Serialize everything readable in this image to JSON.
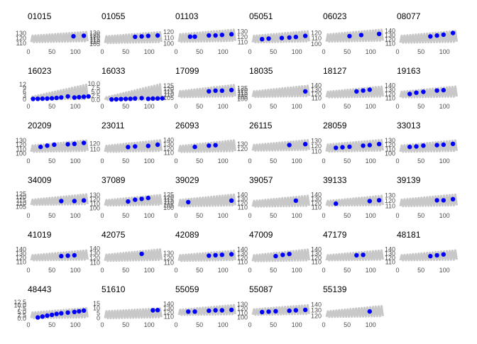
{
  "style": {
    "band_color": "#c8c8c8",
    "point_color": "#0000ff",
    "text_color": "#4d4d4d",
    "title_color": "#000000"
  },
  "chart_data": [
    {
      "type": "scatter",
      "title": "01015",
      "ylim": [
        104,
        140
      ],
      "xlim": [
        0,
        130
      ],
      "yticks": [
        110,
        120,
        130
      ],
      "xticks": [
        0,
        50,
        100
      ],
      "band": [
        112,
        125,
        133
      ],
      "x": [
        96,
        118
      ],
      "y": [
        124,
        125
      ]
    },
    {
      "type": "scatter",
      "title": "01055",
      "ylim": [
        100,
        140
      ],
      "xlim": [
        0,
        130
      ],
      "yticks": [
        105,
        110,
        115,
        120,
        125,
        130
      ],
      "xticks": [
        0,
        50,
        100
      ],
      "band": [
        107,
        122,
        132
      ],
      "x": [
        70,
        84,
        98,
        118
      ],
      "y": [
        121,
        122,
        123,
        124
      ]
    },
    {
      "type": "scatter",
      "title": "01103",
      "ylim": [
        96,
        126
      ],
      "xlim": [
        0,
        130
      ],
      "yticks": [
        100,
        110,
        120
      ],
      "xticks": [
        0,
        50,
        100
      ],
      "band": [
        103,
        116,
        124
      ],
      "x": [
        30,
        40,
        70,
        84,
        98,
        118
      ],
      "y": [
        112,
        112,
        114,
        114,
        115,
        116
      ]
    },
    {
      "type": "scatter",
      "title": "05051",
      "ylim": [
        103,
        136
      ],
      "xlim": [
        0,
        130
      ],
      "yticks": [
        110,
        120,
        130
      ],
      "xticks": [
        0,
        50,
        100
      ],
      "band": [
        110,
        122,
        131
      ],
      "x": [
        26,
        40,
        68,
        84,
        98,
        118
      ],
      "y": [
        116,
        117,
        118,
        119,
        120,
        122
      ]
    },
    {
      "type": "scatter",
      "title": "06023",
      "ylim": [
        96,
        128
      ],
      "xlim": [
        0,
        130
      ],
      "yticks": [
        100,
        110,
        120
      ],
      "xticks": [
        0,
        50,
        100
      ],
      "band": [
        104,
        117,
        126
      ],
      "x": [
        55,
        80,
        118
      ],
      "y": [
        114,
        116,
        118
      ]
    },
    {
      "type": "scatter",
      "title": "08077",
      "ylim": [
        104,
        146
      ],
      "xlim": [
        0,
        130
      ],
      "yticks": [
        110,
        120,
        130,
        140
      ],
      "xticks": [
        0,
        50,
        100
      ],
      "band": [
        112,
        128,
        140
      ],
      "x": [
        70,
        84,
        98,
        118
      ],
      "y": [
        127,
        129,
        131,
        135
      ]
    },
    {
      "type": "scatter",
      "title": "16023",
      "ylim": [
        -1,
        13
      ],
      "xlim": [
        0,
        130
      ],
      "yticks": [
        0,
        3,
        6,
        9,
        12
      ],
      "xticks": [
        0,
        50,
        100
      ],
      "band": [
        0.2,
        2,
        12
      ],
      "x": [
        10,
        20,
        30,
        40,
        50,
        60,
        70,
        84,
        98,
        108,
        118,
        128
      ],
      "y": [
        0.4,
        0.5,
        0.6,
        0.7,
        0.9,
        1.2,
        1.6,
        2.4,
        1.5,
        1.8,
        2.1,
        2.4
      ]
    },
    {
      "type": "scatter",
      "title": "16033",
      "ylim": [
        -0.5,
        10.5
      ],
      "xlim": [
        0,
        130
      ],
      "yticks": [
        0.0,
        2.5,
        5.0,
        7.5,
        10.0
      ],
      "xticks": [
        0,
        50,
        100
      ],
      "band": [
        0.1,
        1.5,
        10
      ],
      "x": [
        20,
        30,
        40,
        50,
        60,
        70,
        84,
        98,
        108,
        118,
        128
      ],
      "y": [
        0.3,
        0.4,
        0.5,
        0.6,
        0.7,
        0.9,
        1.1,
        0.7,
        0.8,
        0.9,
        1.0
      ]
    },
    {
      "type": "scatter",
      "title": "17099",
      "ylim": [
        100,
        130
      ],
      "xlim": [
        0,
        130
      ],
      "yticks": [
        105,
        110,
        115,
        120,
        125
      ],
      "xticks": [
        0,
        50,
        100
      ],
      "band": [
        106,
        116,
        127
      ],
      "x": [
        70,
        84,
        98,
        118
      ],
      "y": [
        116,
        117,
        117,
        118
      ]
    },
    {
      "type": "scatter",
      "title": "18035",
      "ylim": [
        96,
        138
      ],
      "xlim": [
        0,
        130
      ],
      "yticks": [
        100,
        105,
        110,
        115,
        120,
        125
      ],
      "xticks": [
        0,
        50,
        100
      ],
      "band": [
        105,
        118,
        132
      ],
      "x": [
        118
      ],
      "y": [
        118
      ]
    },
    {
      "type": "scatter",
      "title": "18127",
      "ylim": [
        104,
        146
      ],
      "xlim": [
        0,
        130
      ],
      "yticks": [
        110,
        120,
        130,
        140
      ],
      "xticks": [
        0,
        50,
        100
      ],
      "band": [
        112,
        125,
        138
      ],
      "x": [
        70,
        84,
        98
      ],
      "y": [
        126,
        128,
        130
      ]
    },
    {
      "type": "scatter",
      "title": "19163",
      "ylim": [
        104,
        146
      ],
      "xlim": [
        0,
        130
      ],
      "yticks": [
        110,
        120,
        130,
        140
      ],
      "xticks": [
        0,
        50,
        100
      ],
      "band": [
        112,
        125,
        138
      ],
      "x": [
        26,
        40,
        55,
        84,
        98
      ],
      "y": [
        120,
        123,
        125,
        128,
        129
      ]
    },
    {
      "type": "scatter",
      "title": "20209",
      "ylim": [
        96,
        136
      ],
      "xlim": [
        0,
        130
      ],
      "yticks": [
        100,
        110,
        120,
        130
      ],
      "xticks": [
        0,
        50,
        100
      ],
      "band": [
        104,
        118,
        130
      ],
      "x": [
        26,
        40,
        55,
        84,
        98,
        118
      ],
      "y": [
        115,
        118,
        120,
        121,
        122,
        124
      ]
    },
    {
      "type": "scatter",
      "title": "23011",
      "ylim": [
        100,
        130
      ],
      "xlim": [
        0,
        130
      ],
      "yticks": [
        110,
        120
      ],
      "xticks": [
        0,
        50,
        100
      ],
      "band": [
        106,
        116,
        126
      ],
      "x": [
        55,
        70,
        98,
        118
      ],
      "y": [
        114,
        115,
        116,
        118
      ]
    },
    {
      "type": "scatter",
      "title": "26093",
      "ylim": [
        104,
        146
      ],
      "xlim": [
        0,
        130
      ],
      "yticks": [
        110,
        120,
        130,
        140
      ],
      "xticks": [
        0,
        50,
        100
      ],
      "band": [
        112,
        126,
        140
      ],
      "x": [
        40,
        70,
        84
      ],
      "y": [
        124,
        127,
        128
      ]
    },
    {
      "type": "scatter",
      "title": "26115",
      "ylim": [
        106,
        144
      ],
      "xlim": [
        0,
        130
      ],
      "yticks": [
        120,
        130
      ],
      "xticks": [
        0,
        50,
        100
      ],
      "band": [
        116,
        128,
        139
      ],
      "x": [
        84,
        118
      ],
      "y": [
        128,
        130
      ]
    },
    {
      "type": "scatter",
      "title": "28059",
      "ylim": [
        103,
        136
      ],
      "xlim": [
        0,
        130
      ],
      "yticks": [
        110,
        120,
        130
      ],
      "xticks": [
        0,
        50,
        100
      ],
      "band": [
        110,
        123,
        132
      ],
      "x": [
        26,
        40,
        55,
        84,
        98,
        118
      ],
      "y": [
        117,
        118,
        119,
        121,
        122,
        124
      ]
    },
    {
      "type": "scatter",
      "title": "33013",
      "ylim": [
        96,
        136
      ],
      "xlim": [
        0,
        130
      ],
      "yticks": [
        100,
        110,
        120,
        130
      ],
      "xticks": [
        0,
        50,
        100
      ],
      "band": [
        104,
        118,
        130
      ],
      "x": [
        26,
        40,
        55,
        84,
        98,
        118
      ],
      "y": [
        115,
        116,
        118,
        119,
        120,
        122
      ]
    },
    {
      "type": "scatter",
      "title": "34009",
      "ylim": [
        100,
        128
      ],
      "xlim": [
        0,
        130
      ],
      "yticks": [
        105,
        110,
        115,
        120,
        125
      ],
      "xticks": [
        0,
        50,
        100
      ],
      "band": [
        108,
        116,
        125
      ],
      "x": [
        70,
        98,
        118
      ],
      "y": [
        114,
        114,
        115
      ]
    },
    {
      "type": "scatter",
      "title": "37089",
      "ylim": [
        96,
        136
      ],
      "xlim": [
        0,
        130
      ],
      "yticks": [
        100,
        110,
        120,
        130
      ],
      "xticks": [
        0,
        50,
        100
      ],
      "band": [
        106,
        118,
        130
      ],
      "x": [
        55,
        70,
        84,
        98
      ],
      "y": [
        115,
        119,
        121,
        123
      ]
    },
    {
      "type": "scatter",
      "title": "39029",
      "ylim": [
        96,
        130
      ],
      "xlim": [
        0,
        130
      ],
      "yticks": [
        100,
        105,
        110,
        115,
        120,
        125
      ],
      "xticks": [
        0,
        50,
        100
      ],
      "band": [
        103,
        115,
        126
      ],
      "x": [
        26,
        118
      ],
      "y": [
        111,
        114
      ]
    },
    {
      "type": "scatter",
      "title": "39057",
      "ylim": [
        104,
        146
      ],
      "xlim": [
        0,
        130
      ],
      "yticks": [
        110,
        120,
        130,
        140
      ],
      "xticks": [
        0,
        50,
        100
      ],
      "band": [
        112,
        125,
        138
      ],
      "x": [
        98
      ],
      "y": [
        126
      ]
    },
    {
      "type": "scatter",
      "title": "39133",
      "ylim": [
        104,
        146
      ],
      "xlim": [
        0,
        130
      ],
      "yticks": [
        110,
        120,
        130,
        140
      ],
      "xticks": [
        0,
        50,
        100
      ],
      "band": [
        114,
        125,
        138
      ],
      "x": [
        26,
        98,
        118
      ],
      "y": [
        119,
        125,
        127
      ]
    },
    {
      "type": "scatter",
      "title": "39139",
      "ylim": [
        103,
        136
      ],
      "xlim": [
        0,
        130
      ],
      "yticks": [
        110,
        120,
        130
      ],
      "xticks": [
        0,
        50,
        100
      ],
      "band": [
        110,
        122,
        132
      ],
      "x": [
        84,
        98,
        118
      ],
      "y": [
        121,
        121,
        123
      ]
    },
    {
      "type": "scatter",
      "title": "41019",
      "ylim": [
        104,
        146
      ],
      "xlim": [
        0,
        130
      ],
      "yticks": [
        110,
        120,
        130,
        140
      ],
      "xticks": [
        0,
        50,
        100
      ],
      "band": [
        114,
        126,
        138
      ],
      "x": [
        70,
        84,
        98
      ],
      "y": [
        124,
        125,
        126
      ]
    },
    {
      "type": "scatter",
      "title": "42075",
      "ylim": [
        106,
        144
      ],
      "xlim": [
        0,
        130
      ],
      "yticks": [
        110,
        120,
        130,
        140
      ],
      "xticks": [
        0,
        50,
        100
      ],
      "band": [
        114,
        127,
        139
      ],
      "x": [
        84
      ],
      "y": [
        129
      ]
    },
    {
      "type": "scatter",
      "title": "42089",
      "ylim": [
        106,
        144
      ],
      "xlim": [
        0,
        130
      ],
      "yticks": [
        110,
        120,
        130
      ],
      "xticks": [
        0,
        50,
        100
      ],
      "band": [
        114,
        126,
        136
      ],
      "x": [
        70,
        84,
        98,
        118
      ],
      "y": [
        125,
        126,
        127,
        128
      ]
    },
    {
      "type": "scatter",
      "title": "47009",
      "ylim": [
        104,
        146
      ],
      "xlim": [
        0,
        130
      ],
      "yticks": [
        110,
        120,
        130,
        140
      ],
      "xticks": [
        0,
        50,
        100
      ],
      "band": [
        112,
        126,
        140
      ],
      "x": [
        55,
        70,
        84
      ],
      "y": [
        124,
        127,
        129
      ]
    },
    {
      "type": "scatter",
      "title": "47179",
      "ylim": [
        104,
        146
      ],
      "xlim": [
        0,
        130
      ],
      "yticks": [
        110,
        120,
        130,
        140
      ],
      "xticks": [
        0,
        50,
        100
      ],
      "band": [
        114,
        126,
        138
      ],
      "x": [
        70,
        84
      ],
      "y": [
        126,
        127
      ]
    },
    {
      "type": "scatter",
      "title": "48181",
      "ylim": [
        104,
        146
      ],
      "xlim": [
        0,
        130
      ],
      "yticks": [
        110,
        120,
        130,
        140
      ],
      "xticks": [
        0,
        50,
        100
      ],
      "band": [
        114,
        126,
        138
      ],
      "x": [
        70,
        84,
        98
      ],
      "y": [
        124,
        126,
        128
      ]
    },
    {
      "type": "scatter",
      "title": "48443",
      "ylim": [
        -0.5,
        13
      ],
      "xlim": [
        0,
        130
      ],
      "yticks": [
        0.0,
        2.5,
        5.0,
        7.5,
        10.0,
        12.5
      ],
      "xticks": [
        0,
        50,
        100
      ],
      "band": [
        0.3,
        4.5,
        8
      ],
      "x": [
        20,
        30,
        40,
        50,
        60,
        70,
        84,
        98,
        108,
        118
      ],
      "y": [
        0.8,
        1.5,
        2.2,
        2.8,
        3.5,
        4.0,
        4.5,
        5.0,
        5.5,
        6.1
      ]
    },
    {
      "type": "scatter",
      "title": "51610",
      "ylim": [
        -1,
        17
      ],
      "xlim": [
        0,
        130
      ],
      "yticks": [
        0,
        5,
        10,
        15
      ],
      "xticks": [
        0,
        50,
        100
      ],
      "band": [
        0,
        7,
        10
      ],
      "x": [
        108,
        118
      ],
      "y": [
        8,
        8.2
      ]
    },
    {
      "type": "scatter",
      "title": "55059",
      "ylim": [
        104,
        146
      ],
      "xlim": [
        0,
        130
      ],
      "yticks": [
        110,
        120,
        130,
        140
      ],
      "xticks": [
        0,
        50,
        100
      ],
      "band": [
        114,
        126,
        138
      ],
      "x": [
        26,
        40,
        70,
        84,
        98,
        118
      ],
      "y": [
        122,
        122,
        124,
        125,
        125,
        126
      ]
    },
    {
      "type": "scatter",
      "title": "55087",
      "ylim": [
        96,
        136
      ],
      "xlim": [
        0,
        130
      ],
      "yticks": [
        100,
        110,
        120,
        130
      ],
      "xticks": [
        0,
        50,
        100
      ],
      "band": [
        106,
        118,
        128
      ],
      "x": [
        26,
        40,
        55,
        84,
        98,
        118
      ],
      "y": [
        112,
        113,
        114,
        115,
        116,
        117
      ]
    },
    {
      "type": "scatter",
      "title": "55139",
      "ylim": [
        114,
        146
      ],
      "xlim": [
        0,
        130
      ],
      "yticks": [
        120,
        130,
        140
      ],
      "xticks": [
        0,
        50,
        100
      ],
      "band": [
        118,
        128,
        138
      ],
      "x": [
        98
      ],
      "y": [
        128
      ]
    }
  ]
}
